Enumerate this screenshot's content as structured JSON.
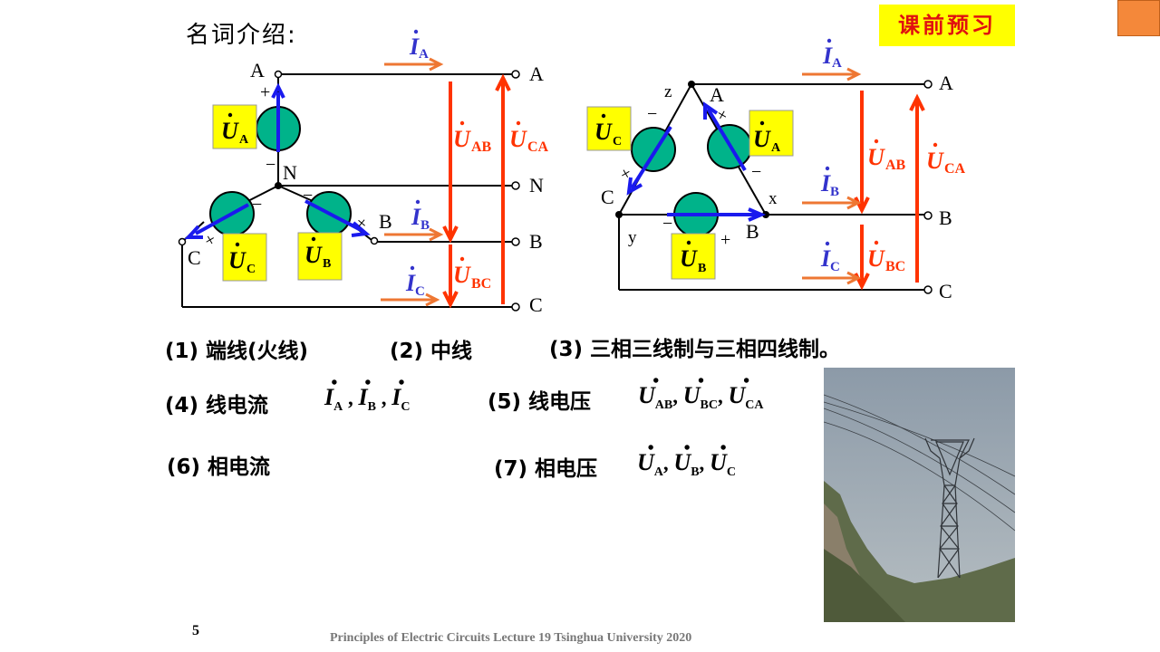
{
  "heading": "名词介绍:",
  "badge": "课前预习",
  "diagram_labels": {
    "A": "A",
    "B": "B",
    "C": "C",
    "N": "N",
    "x": "x",
    "y": "y",
    "z": "z",
    "plus": "+",
    "minus": "−",
    "U": "U",
    "I": "I",
    "sub_A": "A",
    "sub_B": "B",
    "sub_C": "C",
    "sub_AB": "AB",
    "sub_BC": "BC",
    "sub_CA": "CA",
    "dot": "•"
  },
  "terms": {
    "t1": "(1) 端线(火线)",
    "t2": "(2) 中线",
    "t3": "(3) 三相三线制与三相四线制。",
    "t4": "(4) 线电流",
    "t5": "(5) 线电压",
    "t6": "(6) 相电流",
    "t7": "(7) 相电压",
    "comma": ",",
    "comma_cn": ","
  },
  "page_number": "5",
  "footer": "Principles  of Electric  Circuits  Lecture 19 Tsinghua  University  2020",
  "colors": {
    "accent_orange": "#f4883a",
    "arrow_red": "#ff3300",
    "current_orange": "#ee7733",
    "vector_blue": "#1a1aee",
    "label_blue": "#3333cc",
    "source_green": "#00b38a",
    "highlight_yellow": "#ffff00"
  }
}
